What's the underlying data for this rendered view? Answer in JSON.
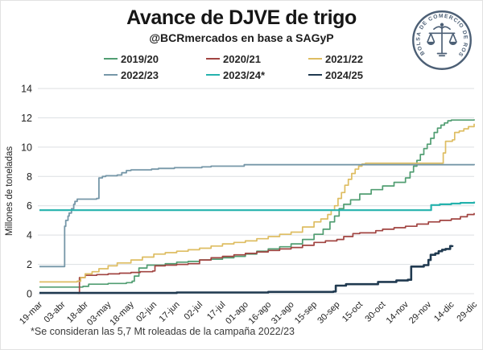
{
  "header": {
    "title": "Avance de DJVE de trigo",
    "subtitle": "@BCRmercados en base a SAGyP"
  },
  "logo": {
    "ring_text": "BOLSA DE COMERCIO DE ROSARIO",
    "symbol": "scales-caduceus-seal",
    "color": "#4c5f75"
  },
  "footnote": "*Se consideran las 5,7 Mt roleadas de la campaña 2022/23",
  "chart_data": {
    "type": "line",
    "step": true,
    "title": "Avance de DJVE de trigo",
    "subtitle": "@BCRmercados en base a SAGyP",
    "xlabel": "",
    "ylabel": "Millones de toneladas",
    "ylim": [
      0,
      14
    ],
    "yticks": [
      0,
      2,
      4,
      6,
      8,
      10,
      12,
      14
    ],
    "grid": "horizontal",
    "grid_color": "#dcdfe2",
    "legend_position": "top",
    "x_tick_labels": [
      "19-mar",
      "03-abr",
      "18-abr",
      "03-may",
      "18-may",
      "02-jun",
      "17-jun",
      "02-jul",
      "17-jul",
      "01-ago",
      "16-ago",
      "31-ago",
      "15-sep",
      "30-sep",
      "15-oct",
      "30-oct",
      "14-nov",
      "29-nov",
      "14-dic",
      "29-dic"
    ],
    "x_units": "tick index (15-day intervals)",
    "y_units": "millones de toneladas",
    "series": [
      {
        "name": "2019/20",
        "color": "#519e72",
        "width": 1.7,
        "points": [
          [
            0,
            0.45
          ],
          [
            1,
            0.45
          ],
          [
            1.9,
            0.5
          ],
          [
            2.15,
            0.65
          ],
          [
            3,
            0.7
          ],
          [
            3.8,
            0.75
          ],
          [
            4.05,
            0.85
          ],
          [
            4.15,
            1.2
          ],
          [
            4.35,
            1.75
          ],
          [
            4.7,
            1.95
          ],
          [
            5.5,
            2.05
          ],
          [
            6,
            2.15
          ],
          [
            6.5,
            2.2
          ],
          [
            7,
            2.3
          ],
          [
            7.5,
            2.35
          ],
          [
            8,
            2.45
          ],
          [
            8.5,
            2.55
          ],
          [
            9,
            2.7
          ],
          [
            9.5,
            2.9
          ],
          [
            10,
            3.05
          ],
          [
            10.5,
            3.2
          ],
          [
            11,
            3.4
          ],
          [
            11.5,
            3.7
          ],
          [
            12,
            4.05
          ],
          [
            12.4,
            4.4
          ],
          [
            12.7,
            4.9
          ],
          [
            12.9,
            5.3
          ],
          [
            13.1,
            5.8
          ],
          [
            13.3,
            6.1
          ],
          [
            13.6,
            6.4
          ],
          [
            14,
            6.8
          ],
          [
            14.5,
            7.1
          ],
          [
            15,
            7.35
          ],
          [
            15.5,
            7.6
          ],
          [
            16,
            7.9
          ],
          [
            16.2,
            8.3
          ],
          [
            16.35,
            8.7
          ],
          [
            16.5,
            9.1
          ],
          [
            16.65,
            9.5
          ],
          [
            16.8,
            9.9
          ],
          [
            16.95,
            10.2
          ],
          [
            17.1,
            10.6
          ],
          [
            17.25,
            11.0
          ],
          [
            17.4,
            11.3
          ],
          [
            17.55,
            11.5
          ],
          [
            17.7,
            11.65
          ],
          [
            17.85,
            11.8
          ],
          [
            18,
            11.85
          ],
          [
            19,
            11.9
          ]
        ]
      },
      {
        "name": "2020/21",
        "color": "#a14441",
        "width": 1.7,
        "points": [
          [
            1.68,
            0.02
          ],
          [
            1.75,
            1.1
          ],
          [
            2,
            1.25
          ],
          [
            2.5,
            1.3
          ],
          [
            3,
            1.35
          ],
          [
            3.5,
            1.4
          ],
          [
            4,
            1.45
          ],
          [
            4.4,
            1.5
          ],
          [
            4.95,
            1.55
          ],
          [
            5.05,
            1.9
          ],
          [
            5.5,
            1.95
          ],
          [
            6,
            2.0
          ],
          [
            6.5,
            2.05
          ],
          [
            7,
            2.3
          ],
          [
            7.5,
            2.45
          ],
          [
            8,
            2.55
          ],
          [
            8.5,
            2.65
          ],
          [
            9,
            2.75
          ],
          [
            9.5,
            2.85
          ],
          [
            10,
            2.95
          ],
          [
            10.5,
            3.05
          ],
          [
            11,
            3.15
          ],
          [
            11.5,
            3.3
          ],
          [
            12,
            3.5
          ],
          [
            12.5,
            3.6
          ],
          [
            13,
            3.7
          ],
          [
            13.3,
            3.9
          ],
          [
            13.7,
            4.1
          ],
          [
            14,
            4.15
          ],
          [
            14.7,
            4.3
          ],
          [
            15,
            4.4
          ],
          [
            15.5,
            4.5
          ],
          [
            16,
            4.6
          ],
          [
            16.5,
            4.75
          ],
          [
            17,
            4.9
          ],
          [
            17.5,
            5.0
          ],
          [
            18,
            5.1
          ],
          [
            18.4,
            5.25
          ],
          [
            18.7,
            5.4
          ],
          [
            19,
            5.5
          ]
        ]
      },
      {
        "name": "2021/22",
        "color": "#debd62",
        "width": 1.7,
        "points": [
          [
            0,
            0.8
          ],
          [
            1,
            0.8
          ],
          [
            1.65,
            0.85
          ],
          [
            1.8,
            1.1
          ],
          [
            2,
            1.35
          ],
          [
            2.3,
            1.5
          ],
          [
            2.6,
            1.7
          ],
          [
            3,
            1.9
          ],
          [
            3.4,
            2.1
          ],
          [
            4,
            2.3
          ],
          [
            4.5,
            2.5
          ],
          [
            5,
            2.7
          ],
          [
            5.5,
            2.8
          ],
          [
            6,
            2.9
          ],
          [
            6.5,
            3.0
          ],
          [
            7,
            3.1
          ],
          [
            7.5,
            3.25
          ],
          [
            8,
            3.4
          ],
          [
            8.5,
            3.5
          ],
          [
            9,
            3.6
          ],
          [
            9.5,
            3.75
          ],
          [
            10,
            3.9
          ],
          [
            10.5,
            4.05
          ],
          [
            11,
            4.2
          ],
          [
            11.5,
            4.55
          ],
          [
            12,
            4.9
          ],
          [
            12.3,
            5.1
          ],
          [
            12.6,
            5.4
          ],
          [
            12.75,
            5.7
          ],
          [
            12.9,
            6.0
          ],
          [
            13.05,
            6.5
          ],
          [
            13.2,
            6.9
          ],
          [
            13.35,
            7.4
          ],
          [
            13.5,
            7.8
          ],
          [
            13.65,
            8.2
          ],
          [
            13.8,
            8.5
          ],
          [
            13.95,
            8.7
          ],
          [
            14.1,
            8.85
          ],
          [
            14.25,
            8.9
          ],
          [
            17.6,
            8.9
          ],
          [
            17.65,
            9.6
          ],
          [
            17.75,
            10.4
          ],
          [
            18.05,
            10.5
          ],
          [
            18.15,
            11.0
          ],
          [
            18.35,
            11.1
          ],
          [
            18.55,
            11.25
          ],
          [
            18.75,
            11.4
          ],
          [
            19,
            11.6
          ]
        ]
      },
      {
        "name": "2022/23",
        "color": "#7697a8",
        "width": 1.8,
        "points": [
          [
            0,
            1.85
          ],
          [
            1.05,
            1.85
          ],
          [
            1.1,
            4.6
          ],
          [
            1.15,
            5.0
          ],
          [
            1.25,
            5.3
          ],
          [
            1.3,
            5.5
          ],
          [
            1.4,
            5.8
          ],
          [
            1.5,
            6.1
          ],
          [
            1.55,
            6.3
          ],
          [
            1.65,
            6.45
          ],
          [
            2.5,
            6.5
          ],
          [
            2.6,
            7.9
          ],
          [
            2.75,
            8.0
          ],
          [
            2.9,
            8.05
          ],
          [
            3.4,
            8.1
          ],
          [
            3.6,
            8.25
          ],
          [
            3.8,
            8.4
          ],
          [
            4,
            8.45
          ],
          [
            4.9,
            8.5
          ],
          [
            5.2,
            8.55
          ],
          [
            5.9,
            8.6
          ],
          [
            7.1,
            8.65
          ],
          [
            7.5,
            8.7
          ],
          [
            8.85,
            8.7
          ],
          [
            8.95,
            8.8
          ],
          [
            12,
            8.8
          ],
          [
            19,
            8.85
          ]
        ]
      },
      {
        "name": "2023/24*",
        "color": "#25b2ad",
        "width": 2.2,
        "points": [
          [
            0,
            5.7
          ],
          [
            17.05,
            5.7
          ],
          [
            17.12,
            6.05
          ],
          [
            17.5,
            6.1
          ],
          [
            18,
            6.15
          ],
          [
            18.4,
            6.2
          ],
          [
            19,
            6.28
          ]
        ]
      },
      {
        "name": "2024/25",
        "color": "#203a50",
        "width": 2.6,
        "points": [
          [
            0,
            0.05
          ],
          [
            6,
            0.08
          ],
          [
            10,
            0.12
          ],
          [
            12.85,
            0.15
          ],
          [
            12.95,
            0.55
          ],
          [
            13.4,
            0.65
          ],
          [
            14.8,
            0.8
          ],
          [
            15.6,
            0.9
          ],
          [
            16.1,
            0.95
          ],
          [
            16.25,
            1.85
          ],
          [
            16.8,
            1.95
          ],
          [
            17.0,
            2.3
          ],
          [
            17.1,
            2.65
          ],
          [
            17.3,
            2.75
          ],
          [
            17.45,
            2.9
          ],
          [
            17.6,
            3.0
          ],
          [
            17.75,
            3.05
          ],
          [
            17.95,
            3.25
          ],
          [
            18.05,
            3.3
          ]
        ]
      }
    ]
  }
}
